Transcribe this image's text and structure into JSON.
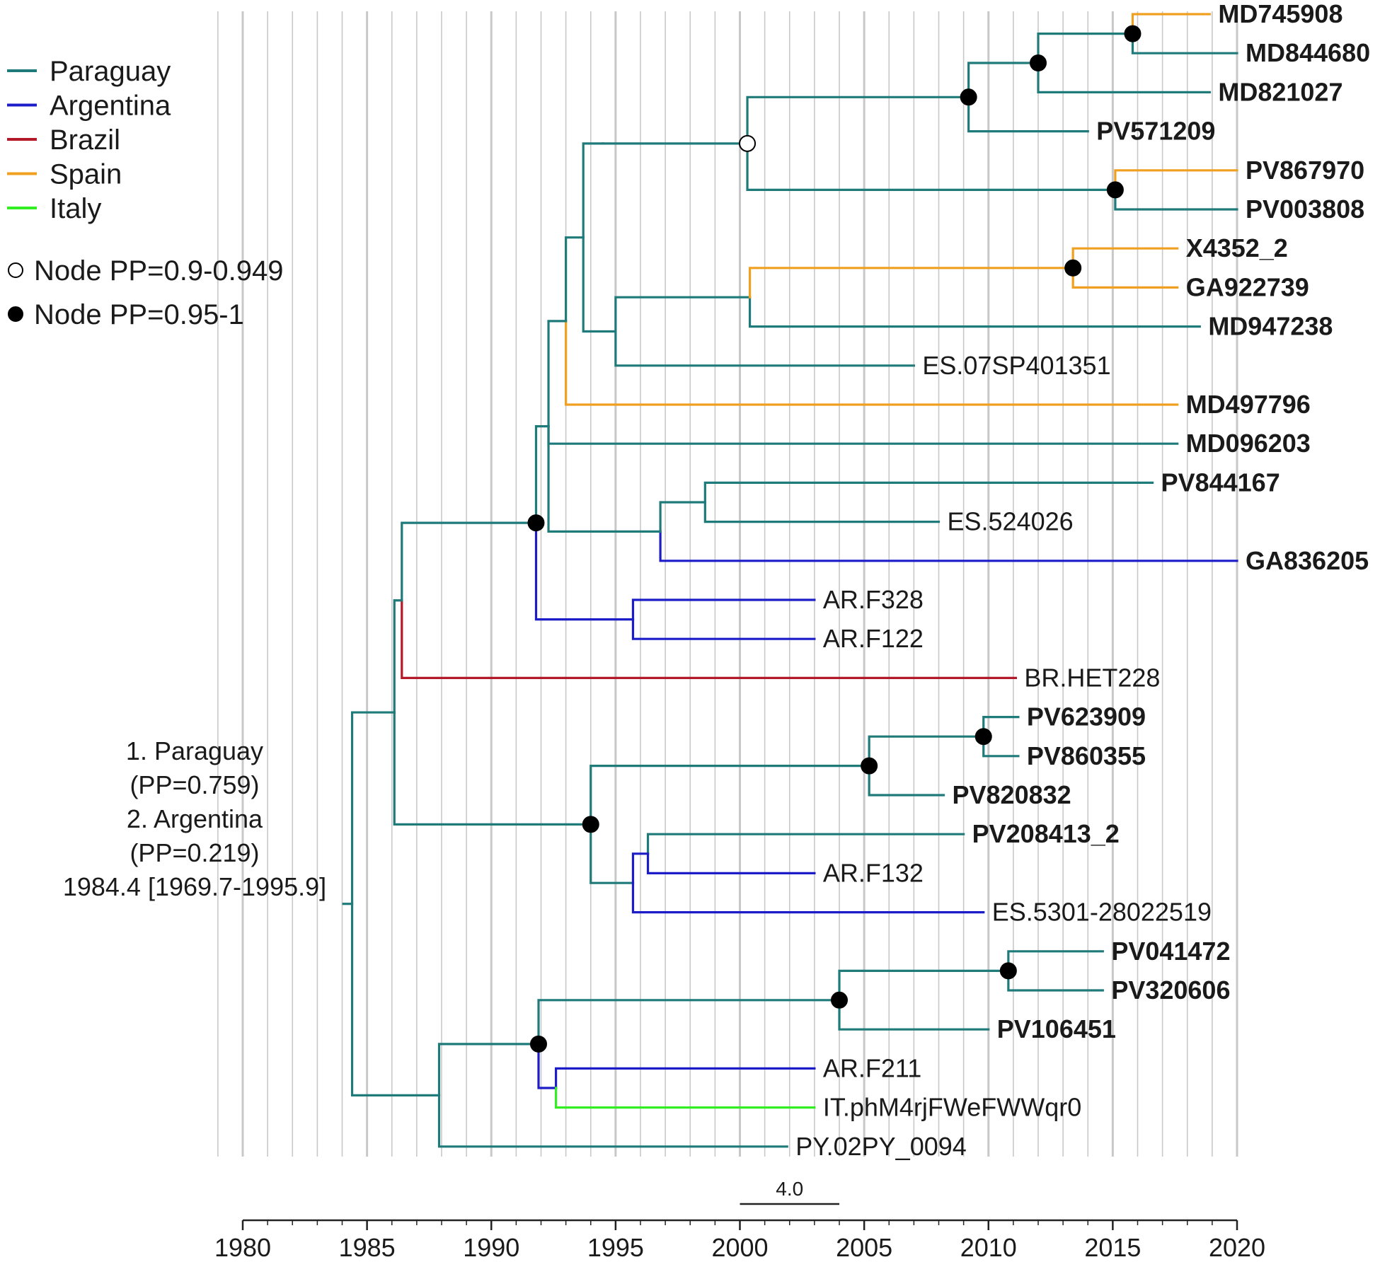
{
  "colors": {
    "Paraguay": "#1f7a7a",
    "Argentina": "#1c1cc8",
    "Brazil": "#b21a2a",
    "Spain": "#f0a020",
    "Italy": "#33ee22",
    "grid": "#c8c8c8",
    "text": "#1a1a1a"
  },
  "legend": {
    "countries": [
      {
        "name": "Paraguay",
        "color": "#1f7a7a"
      },
      {
        "name": "Argentina",
        "color": "#1c1cc8"
      },
      {
        "name": "Brazil",
        "color": "#b21a2a"
      },
      {
        "name": "Spain",
        "color": "#f0a020"
      },
      {
        "name": "Italy",
        "color": "#33ee22"
      }
    ],
    "node_open_label": "Node PP=0.9-0.949",
    "node_filled_label": "Node PP=0.95-1"
  },
  "root_annotation": [
    "1. Paraguay",
    "(PP=0.759)",
    "2. Argentina",
    "(PP=0.219)",
    "1984.4  [1969.7-1995.9]"
  ],
  "axis": {
    "min": 1980,
    "max": 2020,
    "labels": [
      "1980",
      "1985",
      "1990",
      "1995",
      "2000",
      "2005",
      "2010",
      "2015",
      "2020"
    ],
    "scale_bar_label": "4.0",
    "scale_bar_years": 4
  },
  "tree": {
    "root_year": 1984.4,
    "nodes": [
      {
        "id": "ROOT",
        "year": 1984.4
      },
      {
        "id": "A",
        "parent": "ROOT",
        "year": 1986.1,
        "country": "Paraguay"
      },
      {
        "id": "M",
        "parent": "ROOT",
        "year": 1987.9,
        "country": "Paraguay"
      },
      {
        "id": "B",
        "parent": "A",
        "year": 1986.4,
        "country": "Paraguay"
      },
      {
        "id": "J",
        "parent": "A",
        "year": 1994.0,
        "country": "Paraguay",
        "pp": "filled"
      },
      {
        "id": "C",
        "parent": "B",
        "year": 1991.8,
        "country": "Paraguay",
        "pp": "filled"
      },
      {
        "id": "D",
        "parent": "C",
        "year": 1992.3,
        "country": "Paraguay"
      },
      {
        "id": "I",
        "parent": "C",
        "year": 1995.7,
        "country": "Argentina"
      },
      {
        "id": "E",
        "parent": "D",
        "year": 1993.0,
        "country": "Paraguay"
      },
      {
        "id": "H",
        "parent": "D",
        "year": 1996.8,
        "country": "Paraguay"
      },
      {
        "id": "F",
        "parent": "E",
        "year": 1993.7,
        "country": "Paraguay"
      },
      {
        "id": "G",
        "parent": "F",
        "year": 1994.5,
        "country": "Paraguay"
      },
      {
        "id": "P1",
        "parent": "G",
        "year": 2000.3,
        "country": "Paraguay",
        "pp": "open"
      },
      {
        "id": "P2",
        "parent": "P1",
        "year": 2009.2,
        "country": "Paraguay",
        "pp": "filled"
      },
      {
        "id": "P3",
        "parent": "P2",
        "year": 2012.0,
        "country": "Paraguay",
        "pp": "filled"
      },
      {
        "id": "P4",
        "parent": "P3",
        "year": 2015.8,
        "country": "Paraguay",
        "pp": "filled"
      },
      {
        "id": "P5",
        "parent": "P1",
        "year": 2015.1,
        "country": "Paraguay",
        "pp": "filled"
      },
      {
        "id": "SP",
        "parent": "F",
        "year": 1995.0,
        "country": "Paraguay"
      },
      {
        "id": "SP2",
        "parent": "SP",
        "year": 2000.4,
        "country": "Paraguay"
      },
      {
        "id": "SP3",
        "parent": "SP2",
        "year": 2013.4,
        "country": "Spain",
        "pp": "filled"
      },
      {
        "id": "H2",
        "parent": "H",
        "year": 1998.6,
        "country": "Paraguay"
      },
      {
        "id": "K",
        "parent": "J",
        "year": 2005.2,
        "country": "Paraguay",
        "pp": "filled"
      },
      {
        "id": "K2",
        "parent": "K",
        "year": 2009.8,
        "country": "Paraguay",
        "pp": "filled"
      },
      {
        "id": "L",
        "parent": "J",
        "year": 1995.7,
        "country": "Paraguay"
      },
      {
        "id": "L2",
        "parent": "L",
        "year": 1996.3,
        "country": "Argentina"
      },
      {
        "id": "N",
        "parent": "M",
        "year": 1991.9,
        "country": "Paraguay",
        "pp": "filled"
      },
      {
        "id": "N2",
        "parent": "N",
        "year": 2004.0,
        "country": "Paraguay",
        "pp": "filled"
      },
      {
        "id": "N3",
        "parent": "N2",
        "year": 2010.8,
        "country": "Paraguay",
        "pp": "filled"
      },
      {
        "id": "N4",
        "parent": "N",
        "year": 1992.6,
        "country": "Argentina"
      }
    ],
    "tips": [
      {
        "name": "MD745908",
        "parent": "P4",
        "year": 2018.9,
        "country": "Spain",
        "bold": true
      },
      {
        "name": "MD844680",
        "parent": "P4",
        "year": 2020.0,
        "country": "Paraguay",
        "bold": true
      },
      {
        "name": "MD821027",
        "parent": "P3",
        "year": 2018.9,
        "country": "Paraguay",
        "bold": true
      },
      {
        "name": "PV571209",
        "parent": "P2",
        "year": 2014.0,
        "country": "Paraguay",
        "bold": true
      },
      {
        "name": "PV867970",
        "parent": "P5",
        "year": 2020.0,
        "country": "Spain",
        "bold": true
      },
      {
        "name": "PV003808",
        "parent": "P5",
        "year": 2020.0,
        "country": "Paraguay",
        "bold": true
      },
      {
        "name": "X4352_2",
        "parent": "SP3",
        "year": 2017.6,
        "country": "Spain",
        "bold": true
      },
      {
        "name": "GA922739",
        "parent": "SP3",
        "year": 2017.6,
        "country": "Spain",
        "bold": true
      },
      {
        "name": "MD947238",
        "parent": "SP2",
        "year": 2018.5,
        "country": "Paraguay",
        "bold": true
      },
      {
        "name": "ES.07SP401351",
        "parent": "SP",
        "year": 2007.0,
        "country": "Paraguay",
        "bold": false
      },
      {
        "name": "MD497796",
        "parent": "E",
        "year": 2017.6,
        "country": "Spain",
        "bold": true
      },
      {
        "name": "MD096203",
        "parent": "D",
        "year": 2017.6,
        "country": "Paraguay",
        "bold": true
      },
      {
        "name": "PV844167",
        "parent": "H2",
        "year": 2016.6,
        "country": "Paraguay",
        "bold": true
      },
      {
        "name": "ES.524026",
        "parent": "H2",
        "year": 2008.0,
        "country": "Paraguay",
        "bold": false
      },
      {
        "name": "GA836205",
        "parent": "H",
        "year": 2020.0,
        "country": "Argentina",
        "bold": true
      },
      {
        "name": "AR.F328",
        "parent": "I",
        "year": 2003.0,
        "country": "Argentina",
        "bold": false
      },
      {
        "name": "AR.F122",
        "parent": "I",
        "year": 2003.0,
        "country": "Argentina",
        "bold": false
      },
      {
        "name": "BR.HET228",
        "parent": "B",
        "year": 2011.1,
        "country": "Brazil",
        "bold": false
      },
      {
        "name": "PV623909",
        "parent": "K2",
        "year": 2011.2,
        "country": "Paraguay",
        "bold": true
      },
      {
        "name": "PV860355",
        "parent": "K2",
        "year": 2011.2,
        "country": "Paraguay",
        "bold": true
      },
      {
        "name": "PV820832",
        "parent": "K",
        "year": 2008.2,
        "country": "Paraguay",
        "bold": true
      },
      {
        "name": "PV208413_2",
        "parent": "L2",
        "year": 2009.0,
        "country": "Paraguay",
        "bold": true
      },
      {
        "name": "AR.F132",
        "parent": "L2",
        "year": 2003.0,
        "country": "Argentina",
        "bold": false
      },
      {
        "name": "ES.5301-28022519",
        "parent": "L",
        "year": 2009.8,
        "country": "Argentina",
        "bold": false
      },
      {
        "name": "PV041472",
        "parent": "N3",
        "year": 2014.6,
        "country": "Paraguay",
        "bold": true
      },
      {
        "name": "PV320606",
        "parent": "N3",
        "year": 2014.6,
        "country": "Paraguay",
        "bold": true
      },
      {
        "name": "PV106451",
        "parent": "N2",
        "year": 2010.0,
        "country": "Paraguay",
        "bold": true
      },
      {
        "name": "AR.F211",
        "parent": "N4",
        "year": 2003.0,
        "country": "Argentina",
        "bold": false
      },
      {
        "name": "IT.phM4rjFWeFWWqr0",
        "parent": "N4",
        "year": 2003.0,
        "country": "Italy",
        "bold": false
      },
      {
        "name": "PY.02PY_0094",
        "parent": "M",
        "year": 2001.9,
        "country": "Paraguay",
        "bold": false
      }
    ]
  }
}
